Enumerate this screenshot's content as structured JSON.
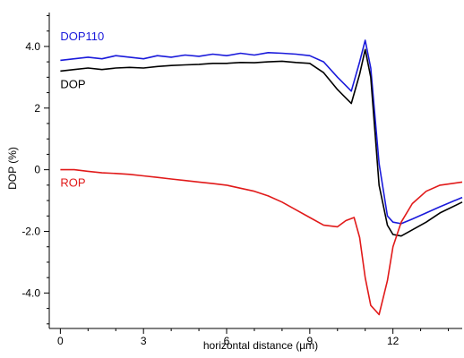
{
  "chart_data": {
    "type": "line",
    "xlabel": "horizontal distance (µm)",
    "ylabel": "DOP (%)",
    "xlim": [
      -0.4,
      14.5
    ],
    "ylim": [
      -5.15,
      5.1
    ],
    "x_ticks": [
      0,
      3,
      6,
      9,
      12
    ],
    "x_tick_labels": [
      "0",
      "3",
      "6",
      "9",
      "12"
    ],
    "y_ticks": [
      -4,
      -2,
      0,
      2,
      4
    ],
    "y_tick_labels": [
      "-4.0",
      "-2.0",
      "0",
      "2",
      "4.0"
    ],
    "grid": false,
    "legend": "inline labels",
    "series": [
      {
        "name": "DOP110",
        "color": "#1a1adb",
        "label_pos": [
          0.0,
          4.2
        ],
        "x": [
          0,
          0.5,
          1,
          1.5,
          2,
          2.5,
          3,
          3.5,
          4,
          4.5,
          5,
          5.5,
          6,
          6.5,
          7,
          7.5,
          8,
          8.5,
          9,
          9.5,
          10,
          10.5,
          10.8,
          11.0,
          11.2,
          11.5,
          11.8,
          12.0,
          12.3,
          12.7,
          13.2,
          13.7,
          14.5
        ],
        "y": [
          3.55,
          3.6,
          3.65,
          3.6,
          3.7,
          3.65,
          3.6,
          3.7,
          3.65,
          3.72,
          3.68,
          3.75,
          3.7,
          3.78,
          3.72,
          3.8,
          3.78,
          3.75,
          3.7,
          3.5,
          3.0,
          2.55,
          3.5,
          4.2,
          3.3,
          0.2,
          -1.5,
          -1.7,
          -1.75,
          -1.6,
          -1.4,
          -1.2,
          -0.9
        ]
      },
      {
        "name": "DOP",
        "color": "#000000",
        "label_pos": [
          0.0,
          2.65
        ],
        "x": [
          0,
          0.5,
          1,
          1.5,
          2,
          2.5,
          3,
          3.5,
          4,
          4.5,
          5,
          5.5,
          6,
          6.5,
          7,
          7.5,
          8,
          8.5,
          9,
          9.5,
          10,
          10.5,
          10.8,
          11.0,
          11.2,
          11.5,
          11.8,
          12.0,
          12.3,
          12.7,
          13.2,
          13.7,
          14.5
        ],
        "y": [
          3.2,
          3.25,
          3.3,
          3.25,
          3.3,
          3.32,
          3.3,
          3.35,
          3.38,
          3.4,
          3.42,
          3.45,
          3.45,
          3.48,
          3.47,
          3.5,
          3.52,
          3.48,
          3.45,
          3.15,
          2.6,
          2.15,
          3.1,
          3.9,
          3.0,
          -0.5,
          -1.8,
          -2.1,
          -2.15,
          -1.95,
          -1.7,
          -1.4,
          -1.05
        ]
      },
      {
        "name": "ROP",
        "color": "#e11a1a",
        "label_pos": [
          0.0,
          -0.55
        ],
        "x": [
          0,
          0.5,
          1,
          1.5,
          2,
          2.5,
          3,
          3.5,
          4,
          4.5,
          5,
          5.5,
          6,
          6.5,
          7,
          7.5,
          8,
          8.5,
          9,
          9.5,
          10,
          10.3,
          10.6,
          10.8,
          11.0,
          11.2,
          11.5,
          11.8,
          12.0,
          12.3,
          12.7,
          13.2,
          13.7,
          14.5
        ],
        "y": [
          0.0,
          0.0,
          -0.05,
          -0.1,
          -0.12,
          -0.15,
          -0.2,
          -0.25,
          -0.3,
          -0.35,
          -0.4,
          -0.45,
          -0.5,
          -0.6,
          -0.7,
          -0.85,
          -1.05,
          -1.3,
          -1.55,
          -1.8,
          -1.85,
          -1.65,
          -1.55,
          -2.2,
          -3.5,
          -4.4,
          -4.7,
          -3.6,
          -2.5,
          -1.7,
          -1.1,
          -0.7,
          -0.5,
          -0.4
        ]
      }
    ]
  }
}
